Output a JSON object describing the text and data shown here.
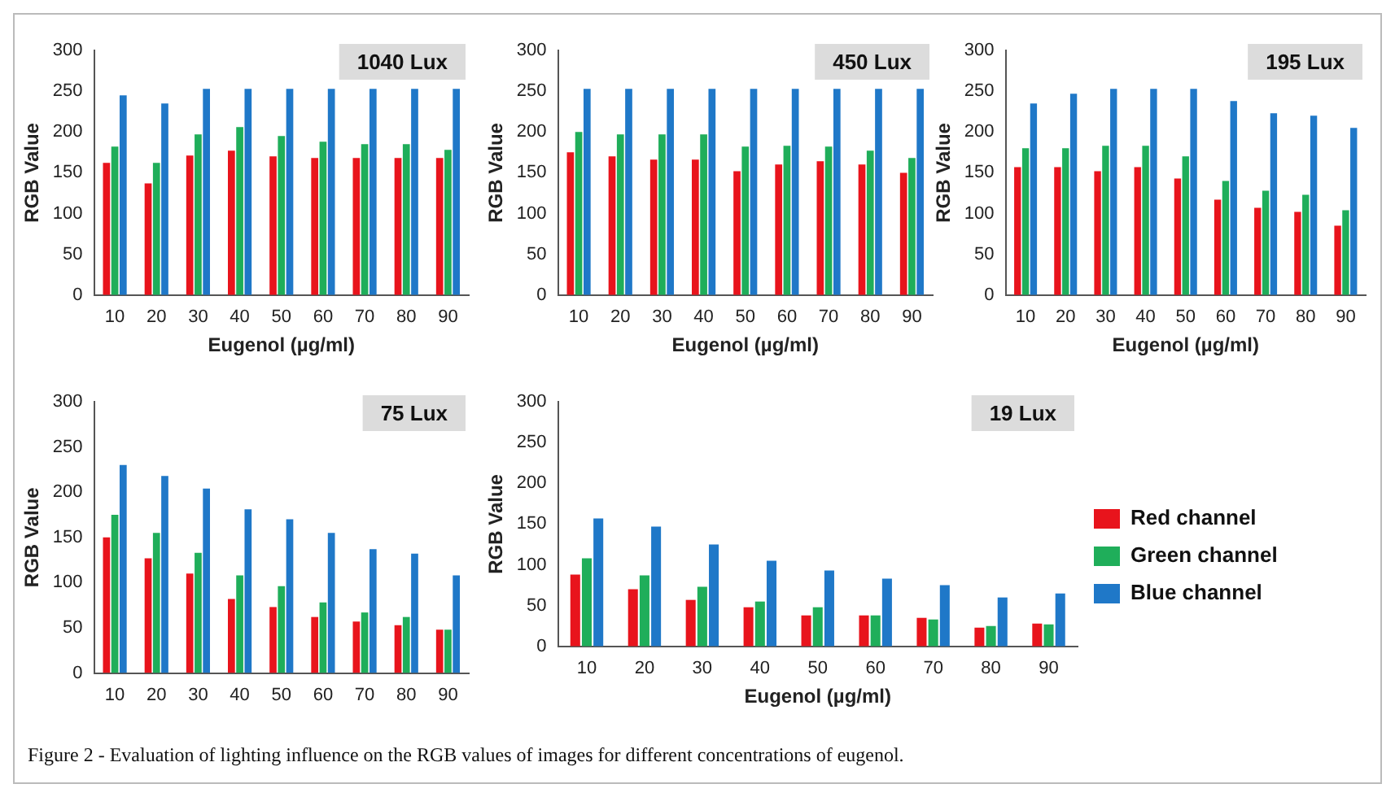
{
  "chart_data": [
    {
      "type": "bar",
      "title": "1040 Lux",
      "xlabel": "Eugenol (µg/ml)",
      "ylabel": "RGB Value",
      "categories": [
        "10",
        "20",
        "30",
        "40",
        "50",
        "60",
        "70",
        "80",
        "90"
      ],
      "ylim": [
        0,
        300
      ],
      "yticks": [
        0,
        50,
        100,
        150,
        200,
        250,
        300
      ],
      "series": [
        {
          "color": "#e8141c",
          "values": [
            162,
            137,
            171,
            177,
            170,
            168,
            168,
            168,
            168
          ]
        },
        {
          "color": "#1fae5a",
          "values": [
            182,
            162,
            197,
            206,
            195,
            188,
            185,
            185,
            178
          ]
        },
        {
          "color": "#1f78c8",
          "values": [
            245,
            235,
            253,
            253,
            253,
            253,
            253,
            253,
            253
          ]
        }
      ]
    },
    {
      "type": "bar",
      "title": "450 Lux",
      "xlabel": "Eugenol (µg/ml)",
      "ylabel": "RGB Value",
      "categories": [
        "10",
        "20",
        "30",
        "40",
        "50",
        "60",
        "70",
        "80",
        "90"
      ],
      "ylim": [
        0,
        300
      ],
      "yticks": [
        0,
        50,
        100,
        150,
        200,
        250,
        300
      ],
      "series": [
        {
          "color": "#e8141c",
          "values": [
            175,
            170,
            166,
            166,
            152,
            160,
            164,
            160,
            150
          ]
        },
        {
          "color": "#1fae5a",
          "values": [
            200,
            197,
            197,
            197,
            182,
            183,
            182,
            177,
            168
          ]
        },
        {
          "color": "#1f78c8",
          "values": [
            253,
            253,
            253,
            253,
            253,
            253,
            253,
            253,
            253
          ]
        }
      ]
    },
    {
      "type": "bar",
      "title": "195 Lux",
      "xlabel": "Eugenol (µg/ml)",
      "ylabel": "RGB Value",
      "categories": [
        "10",
        "20",
        "30",
        "40",
        "50",
        "60",
        "70",
        "80",
        "90"
      ],
      "ylim": [
        0,
        300
      ],
      "yticks": [
        0,
        50,
        100,
        150,
        200,
        250,
        300
      ],
      "series": [
        {
          "color": "#e8141c",
          "values": [
            157,
            157,
            152,
            157,
            143,
            117,
            107,
            102,
            85
          ]
        },
        {
          "color": "#1fae5a",
          "values": [
            180,
            180,
            183,
            183,
            170,
            140,
            128,
            123,
            104
          ]
        },
        {
          "color": "#1f78c8",
          "values": [
            235,
            247,
            253,
            253,
            253,
            238,
            223,
            220,
            205
          ]
        }
      ]
    },
    {
      "type": "bar",
      "title": "75 Lux",
      "ylabel": "RGB Value",
      "categories": [
        "10",
        "20",
        "30",
        "40",
        "50",
        "60",
        "70",
        "80",
        "90"
      ],
      "ylim": [
        0,
        300
      ],
      "yticks": [
        0,
        50,
        100,
        150,
        200,
        250,
        300
      ],
      "series": [
        {
          "color": "#e8141c",
          "values": [
            150,
            127,
            110,
            82,
            73,
            62,
            57,
            53,
            48
          ]
        },
        {
          "color": "#1fae5a",
          "values": [
            175,
            155,
            133,
            108,
            96,
            78,
            67,
            62,
            48
          ]
        },
        {
          "color": "#1f78c8",
          "values": [
            230,
            218,
            204,
            181,
            170,
            155,
            137,
            132,
            108
          ]
        }
      ]
    },
    {
      "type": "bar",
      "title": "19 Lux",
      "xlabel": "Eugenol (µg/ml)",
      "ylabel": "RGB Value",
      "categories": [
        "10",
        "20",
        "30",
        "40",
        "50",
        "60",
        "70",
        "80",
        "90"
      ],
      "ylim": [
        0,
        300
      ],
      "yticks": [
        0,
        50,
        100,
        150,
        200,
        250,
        300
      ],
      "legend": "right",
      "annotations": [
        "Figure 2 - Evaluation of lighting influence on the RGB values of images for different concentrations of eugenol."
      ],
      "series": [
        {
          "name": "Red channel",
          "color": "#e8141c",
          "values": [
            88,
            70,
            57,
            48,
            38,
            38,
            35,
            23,
            28
          ]
        },
        {
          "name": "Green channel",
          "color": "#1fae5a",
          "values": [
            108,
            87,
            73,
            55,
            48,
            38,
            33,
            25,
            27
          ]
        },
        {
          "name": "Blue channel",
          "color": "#1f78c8",
          "values": [
            157,
            147,
            125,
            105,
            93,
            83,
            75,
            60,
            65
          ]
        }
      ]
    }
  ]
}
